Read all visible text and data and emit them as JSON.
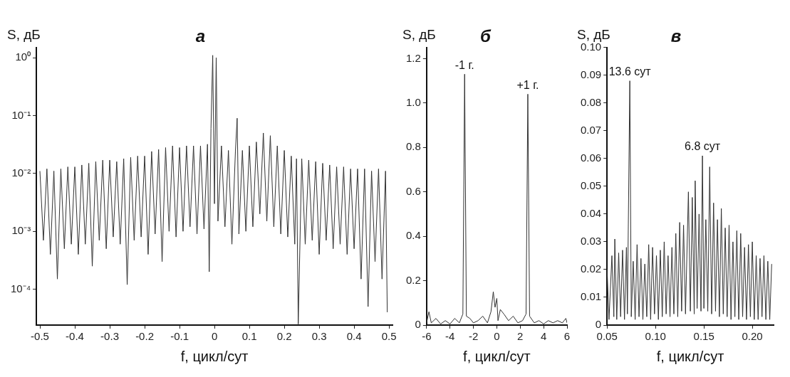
{
  "chart_data": [
    {
      "type": "line",
      "title": "а",
      "xlabel": "f, цикл/сут",
      "ylabel": "S, дБ",
      "log": "y",
      "xlim": [
        -0.51,
        0.51
      ],
      "ylim": [
        2.4e-05,
        1.5
      ],
      "xticks": [
        -0.5,
        -0.4,
        -0.3,
        -0.2,
        -0.1,
        0,
        0.1,
        0.2,
        0.3,
        0.4,
        0.5
      ],
      "yticks": [
        {
          "value": 0.0001,
          "label": "10⁻⁴"
        },
        {
          "value": 0.001,
          "label": "10⁻³"
        },
        {
          "value": 0.01,
          "label": "10⁻²"
        },
        {
          "value": 0.1,
          "label": "10⁻¹"
        },
        {
          "value": 1,
          "label": "10⁰"
        }
      ],
      "series": [
        {
          "color": "#333333",
          "x": [
            -0.5,
            -0.49,
            -0.48,
            -0.47,
            -0.46,
            -0.45,
            -0.44,
            -0.43,
            -0.42,
            -0.41,
            -0.4,
            -0.39,
            -0.38,
            -0.37,
            -0.36,
            -0.35,
            -0.34,
            -0.33,
            -0.32,
            -0.31,
            -0.3,
            -0.29,
            -0.28,
            -0.27,
            -0.26,
            -0.25,
            -0.24,
            -0.23,
            -0.22,
            -0.21,
            -0.2,
            -0.19,
            -0.18,
            -0.17,
            -0.16,
            -0.15,
            -0.14,
            -0.13,
            -0.12,
            -0.11,
            -0.1,
            -0.09,
            -0.08,
            -0.07,
            -0.06,
            -0.05,
            -0.04,
            -0.03,
            -0.02,
            -0.015,
            -0.01,
            -0.005,
            0,
            0.005,
            0.01,
            0.02,
            0.03,
            0.04,
            0.05,
            0.06,
            0.065,
            0.07,
            0.08,
            0.09,
            0.1,
            0.11,
            0.12,
            0.13,
            0.14,
            0.15,
            0.16,
            0.17,
            0.18,
            0.19,
            0.2,
            0.21,
            0.22,
            0.23,
            0.235,
            0.24,
            0.25,
            0.26,
            0.27,
            0.28,
            0.29,
            0.3,
            0.31,
            0.32,
            0.33,
            0.34,
            0.35,
            0.36,
            0.37,
            0.38,
            0.39,
            0.4,
            0.41,
            0.42,
            0.43,
            0.44,
            0.45,
            0.46,
            0.47,
            0.48,
            0.49,
            0.495
          ],
          "values": [
            0.011,
            0.0007,
            0.012,
            0.0004,
            0.011,
            0.00015,
            0.012,
            0.0005,
            0.013,
            0.0006,
            0.013,
            0.0004,
            0.014,
            0.0006,
            0.015,
            0.00025,
            0.016,
            0.0007,
            0.017,
            0.0005,
            0.017,
            0.0008,
            0.016,
            0.0006,
            0.018,
            0.00012,
            0.019,
            0.0007,
            0.02,
            0.0008,
            0.02,
            0.0004,
            0.024,
            0.0009,
            0.026,
            0.0003,
            0.028,
            0.001,
            0.03,
            0.0008,
            0.028,
            0.001,
            0.03,
            0.0012,
            0.03,
            0.0009,
            0.03,
            0.0011,
            0.032,
            0.0002,
            0.06,
            1.1,
            0.003,
            1,
            0.0015,
            0.03,
            0.0012,
            0.025,
            0.0006,
            0.024,
            0.09,
            0.0009,
            0.025,
            0.001,
            0.03,
            0.0012,
            0.035,
            0.002,
            0.05,
            0.0015,
            0.045,
            0.0012,
            0.03,
            0.0009,
            0.025,
            0.0008,
            0.02,
            0.0006,
            0.018,
            2.5e-05,
            0.018,
            0.0006,
            0.017,
            0.0007,
            0.016,
            0.0004,
            0.015,
            0.0007,
            0.014,
            0.0005,
            0.013,
            0.0006,
            0.013,
            0.0004,
            0.012,
            0.0005,
            0.012,
            0.00015,
            0.012,
            5e-05,
            0.011,
            0.0003,
            0.012,
            0.00015,
            0.011,
            4e-05
          ]
        }
      ]
    },
    {
      "type": "line",
      "title": "б",
      "xlabel": "f, цикл/сут",
      "ylabel": "S, дБ",
      "xlim": [
        -6,
        6
      ],
      "ylim": [
        0,
        1.25
      ],
      "xticks": [
        -6,
        -4,
        -2,
        0,
        2,
        4,
        6
      ],
      "yticks": [
        0,
        0.2,
        0.4,
        0.6,
        0.8,
        {
          "value": 1,
          "label": "1.0"
        },
        1.2
      ],
      "annotations": [
        {
          "text": "-1 г.",
          "x": -2.75,
          "y": 1.13
        },
        {
          "text": "+1 г.",
          "x": 2.65,
          "y": 1.04
        }
      ],
      "series": [
        {
          "color": "#333333",
          "x": [
            -6,
            -5.8,
            -5.6,
            -5.2,
            -4.8,
            -4.4,
            -4,
            -3.6,
            -3.2,
            -2.9,
            -2.75,
            -2.6,
            -2.3,
            -2,
            -1.6,
            -1.2,
            -0.8,
            -0.5,
            -0.3,
            -0.15,
            0,
            0.1,
            0.3,
            0.6,
            1,
            1.4,
            1.8,
            2.2,
            2.5,
            2.65,
            2.8,
            3.2,
            3.6,
            4,
            4.4,
            4.8,
            5.2,
            5.6,
            5.9,
            6
          ],
          "values": [
            0.01,
            0.06,
            0.01,
            0.03,
            0.005,
            0.02,
            0.005,
            0.03,
            0.01,
            0.05,
            1.13,
            0.04,
            0.03,
            0.01,
            0.02,
            0.04,
            0.01,
            0.06,
            0.15,
            0.08,
            0.12,
            0.02,
            0.07,
            0.05,
            0.02,
            0.04,
            0.01,
            0.02,
            0.05,
            1.04,
            0.04,
            0.01,
            0.02,
            0.005,
            0.02,
            0.01,
            0.02,
            0.01,
            0.03,
            0.01
          ]
        }
      ]
    },
    {
      "type": "line",
      "title": "в",
      "xlabel": "f, цикл/сут",
      "ylabel": "S, дБ",
      "xlim": [
        0.05,
        0.222
      ],
      "ylim": [
        0,
        0.1
      ],
      "xticks": [
        0.05,
        {
          "value": 0.1,
          "label": "0.10"
        },
        0.15,
        {
          "value": 0.2,
          "label": "0.20"
        }
      ],
      "yticks": [
        0,
        0.01,
        0.02,
        0.03,
        0.04,
        0.05,
        0.06,
        0.07,
        0.08,
        0.09,
        {
          "value": 0.1,
          "label": "0.10"
        }
      ],
      "annotations": [
        {
          "text": "13.6 сут",
          "x": 0.0735,
          "y": 0.088
        },
        {
          "text": "6.8 сут",
          "x": 0.1485,
          "y": 0.061
        }
      ],
      "series": [
        {
          "color": "#333333",
          "x": [
            0.05,
            0.052,
            0.055,
            0.057,
            0.058,
            0.06,
            0.062,
            0.064,
            0.066,
            0.068,
            0.07,
            0.071,
            0.0735,
            0.075,
            0.077,
            0.079,
            0.081,
            0.083,
            0.085,
            0.087,
            0.089,
            0.091,
            0.093,
            0.095,
            0.097,
            0.099,
            0.101,
            0.103,
            0.105,
            0.107,
            0.109,
            0.111,
            0.113,
            0.115,
            0.117,
            0.119,
            0.121,
            0.123,
            0.125,
            0.127,
            0.129,
            0.131,
            0.134,
            0.136,
            0.138,
            0.14,
            0.141,
            0.143,
            0.145,
            0.147,
            0.1485,
            0.15,
            0.152,
            0.154,
            0.156,
            0.158,
            0.16,
            0.162,
            0.164,
            0.166,
            0.168,
            0.17,
            0.172,
            0.174,
            0.176,
            0.178,
            0.18,
            0.182,
            0.184,
            0.186,
            0.188,
            0.19,
            0.192,
            0.194,
            0.196,
            0.198,
            0.2,
            0.202,
            0.204,
            0.206,
            0.208,
            0.21,
            0.212,
            0.214,
            0.216,
            0.218,
            0.22
          ],
          "values": [
            0.02,
            0.002,
            0.025,
            0.003,
            0.031,
            0.002,
            0.026,
            0.003,
            0.027,
            0.002,
            0.028,
            0.004,
            0.088,
            0.003,
            0.023,
            0.002,
            0.029,
            0.003,
            0.024,
            0.002,
            0.022,
            0.003,
            0.029,
            0.002,
            0.028,
            0.004,
            0.025,
            0.002,
            0.027,
            0.003,
            0.03,
            0.004,
            0.025,
            0.003,
            0.028,
            0.004,
            0.033,
            0.003,
            0.037,
            0.005,
            0.036,
            0.004,
            0.048,
            0.005,
            0.046,
            0.004,
            0.052,
            0.006,
            0.04,
            0.005,
            0.061,
            0.006,
            0.038,
            0.005,
            0.057,
            0.004,
            0.044,
            0.005,
            0.038,
            0.003,
            0.042,
            0.004,
            0.035,
            0.003,
            0.036,
            0.002,
            0.03,
            0.003,
            0.034,
            0.002,
            0.033,
            0.003,
            0.028,
            0.002,
            0.029,
            0.003,
            0.03,
            0.002,
            0.025,
            0.002,
            0.024,
            0.003,
            0.025,
            0.002,
            0.023,
            0.002,
            0.022
          ]
        }
      ]
    }
  ]
}
